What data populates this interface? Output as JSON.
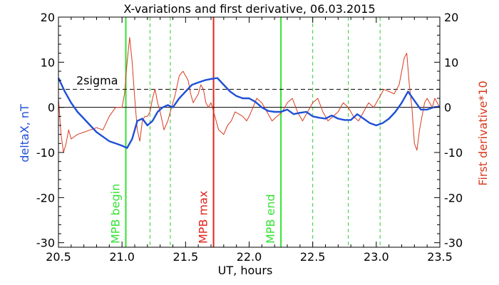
{
  "chart_data": {
    "type": "line",
    "title": "X-variations and first derivative, 06.03.2015",
    "xlabel": "UT, hours",
    "ylabel_left": "deltaX, nT",
    "ylabel_right": "First derivative*10",
    "xlim": [
      20.5,
      23.5
    ],
    "ylim": [
      -31,
      20
    ],
    "x_ticks": [
      20.5,
      21.0,
      21.5,
      22.0,
      22.5,
      23.0,
      23.5
    ],
    "x_tick_labels": [
      "20.5",
      "21.0",
      "21.5",
      "22.0",
      "22.5",
      "23.0",
      "23.5"
    ],
    "y_ticks": [
      20,
      10,
      0,
      -10,
      -20,
      -30
    ],
    "y_tick_labels": [
      "20",
      "10",
      "0",
      "-10",
      "-20",
      "-30"
    ],
    "sigma_level": 4,
    "sigma_label": "2sigma",
    "colors": {
      "deltaX": "#1e4fd6",
      "derivative": "#d83a1e",
      "mpb_boundary": "#33e233",
      "mpb_max": "#e2231a",
      "minor_line": "#33cc33"
    },
    "series": [
      {
        "name": "deltaX, nT",
        "x": [
          20.5,
          20.55,
          20.6,
          20.65,
          20.7,
          20.75,
          20.8,
          20.85,
          20.9,
          20.95,
          21.0,
          21.04,
          21.08,
          21.12,
          21.16,
          21.2,
          21.24,
          21.28,
          21.32,
          21.36,
          21.4,
          21.45,
          21.5,
          21.55,
          21.6,
          21.65,
          21.7,
          21.75,
          21.8,
          21.85,
          21.9,
          21.95,
          22.0,
          22.05,
          22.1,
          22.15,
          22.2,
          22.25,
          22.3,
          22.35,
          22.4,
          22.45,
          22.5,
          22.55,
          22.6,
          22.65,
          22.7,
          22.75,
          22.8,
          22.85,
          22.9,
          22.95,
          23.0,
          23.05,
          23.1,
          23.15,
          23.2,
          23.25,
          23.3,
          23.35,
          23.4,
          23.45,
          23.5
        ],
        "y": [
          6.5,
          3.5,
          1,
          -1,
          -2.5,
          -4,
          -5.5,
          -6.5,
          -7.5,
          -8,
          -8.5,
          -9,
          -7,
          -3,
          -2.5,
          -4,
          -3,
          -1,
          0,
          0.5,
          0,
          2,
          3.5,
          5,
          5.5,
          6,
          6.3,
          6.5,
          5,
          3.5,
          2.5,
          2,
          2,
          1.2,
          0,
          -0.8,
          -1,
          -1,
          -0.5,
          -1.5,
          -1.2,
          -1,
          -2,
          -2.3,
          -2.5,
          -1.8,
          -2.5,
          -2.8,
          -2.8,
          -1.5,
          -2.5,
          -3.5,
          -4,
          -3.5,
          -2.5,
          -1,
          1,
          3.5,
          1.5,
          -0.5,
          -0.5,
          0,
          0.2
        ]
      },
      {
        "name": "First derivative*10",
        "x": [
          20.5,
          20.52,
          20.54,
          20.56,
          20.58,
          20.6,
          20.65,
          20.7,
          20.75,
          20.8,
          20.85,
          20.9,
          20.95,
          21.0,
          21.02,
          21.04,
          21.06,
          21.08,
          21.1,
          21.12,
          21.14,
          21.16,
          21.18,
          21.2,
          21.22,
          21.24,
          21.26,
          21.28,
          21.3,
          21.33,
          21.36,
          21.39,
          21.42,
          21.45,
          21.48,
          21.5,
          21.52,
          21.54,
          21.56,
          21.58,
          21.6,
          21.62,
          21.64,
          21.66,
          21.68,
          21.7,
          21.73,
          21.76,
          21.8,
          21.83,
          21.86,
          21.89,
          21.92,
          21.95,
          21.98,
          22.0,
          22.03,
          22.06,
          22.1,
          22.14,
          22.18,
          22.22,
          22.26,
          22.3,
          22.34,
          22.38,
          22.42,
          22.46,
          22.5,
          22.54,
          22.58,
          22.62,
          22.66,
          22.7,
          22.74,
          22.78,
          22.82,
          22.86,
          22.9,
          22.94,
          22.98,
          23.02,
          23.06,
          23.1,
          23.14,
          23.18,
          23.22,
          23.24,
          23.26,
          23.28,
          23.3,
          23.32,
          23.34,
          23.36,
          23.38,
          23.4,
          23.42,
          23.44,
          23.46,
          23.48,
          23.5
        ],
        "y": [
          2,
          -6,
          -10,
          -8,
          -5,
          -7,
          -6,
          -5.5,
          -5,
          -4.5,
          -5,
          -2,
          0,
          0,
          3,
          10,
          15.5,
          10,
          2,
          -5,
          -7.5,
          -3,
          -2,
          -2,
          -1,
          2,
          4,
          1,
          -1,
          -5,
          -3,
          0,
          3,
          7,
          8,
          7,
          6,
          3,
          1,
          2,
          3,
          5,
          4,
          1,
          0,
          1,
          -2,
          -5,
          -6,
          -4,
          -3,
          -1,
          -1.5,
          -2,
          -3,
          -2,
          0,
          2,
          1,
          -1,
          -3,
          -2,
          -1,
          1,
          2,
          -1,
          -3,
          -1,
          1,
          2,
          -1,
          -3,
          -2,
          -1,
          1,
          0,
          -2,
          -3,
          -1,
          1,
          0,
          2,
          4,
          3.5,
          3,
          5,
          11,
          12,
          5,
          0,
          -8,
          -9.5,
          -5,
          -2,
          1,
          2,
          1,
          0,
          2,
          1,
          0
        ]
      }
    ],
    "vertical_lines": [
      {
        "x": 21.03,
        "style": "solid",
        "color_key": "mpb_boundary",
        "label": "MPB begin"
      },
      {
        "x": 21.22,
        "style": "dashed",
        "color_key": "minor_line",
        "label": ""
      },
      {
        "x": 21.38,
        "style": "dashed",
        "color_key": "minor_line",
        "label": ""
      },
      {
        "x": 21.72,
        "style": "solid",
        "color_key": "mpb_max",
        "label": "MPB max"
      },
      {
        "x": 22.25,
        "style": "solid",
        "color_key": "mpb_boundary",
        "label": "MPB end"
      },
      {
        "x": 22.5,
        "style": "dashed",
        "color_key": "minor_line",
        "label": ""
      },
      {
        "x": 22.78,
        "style": "dashed",
        "color_key": "minor_line",
        "label": ""
      },
      {
        "x": 23.03,
        "style": "dashed",
        "color_key": "minor_line",
        "label": ""
      }
    ],
    "grid": false,
    "legend": "none"
  }
}
